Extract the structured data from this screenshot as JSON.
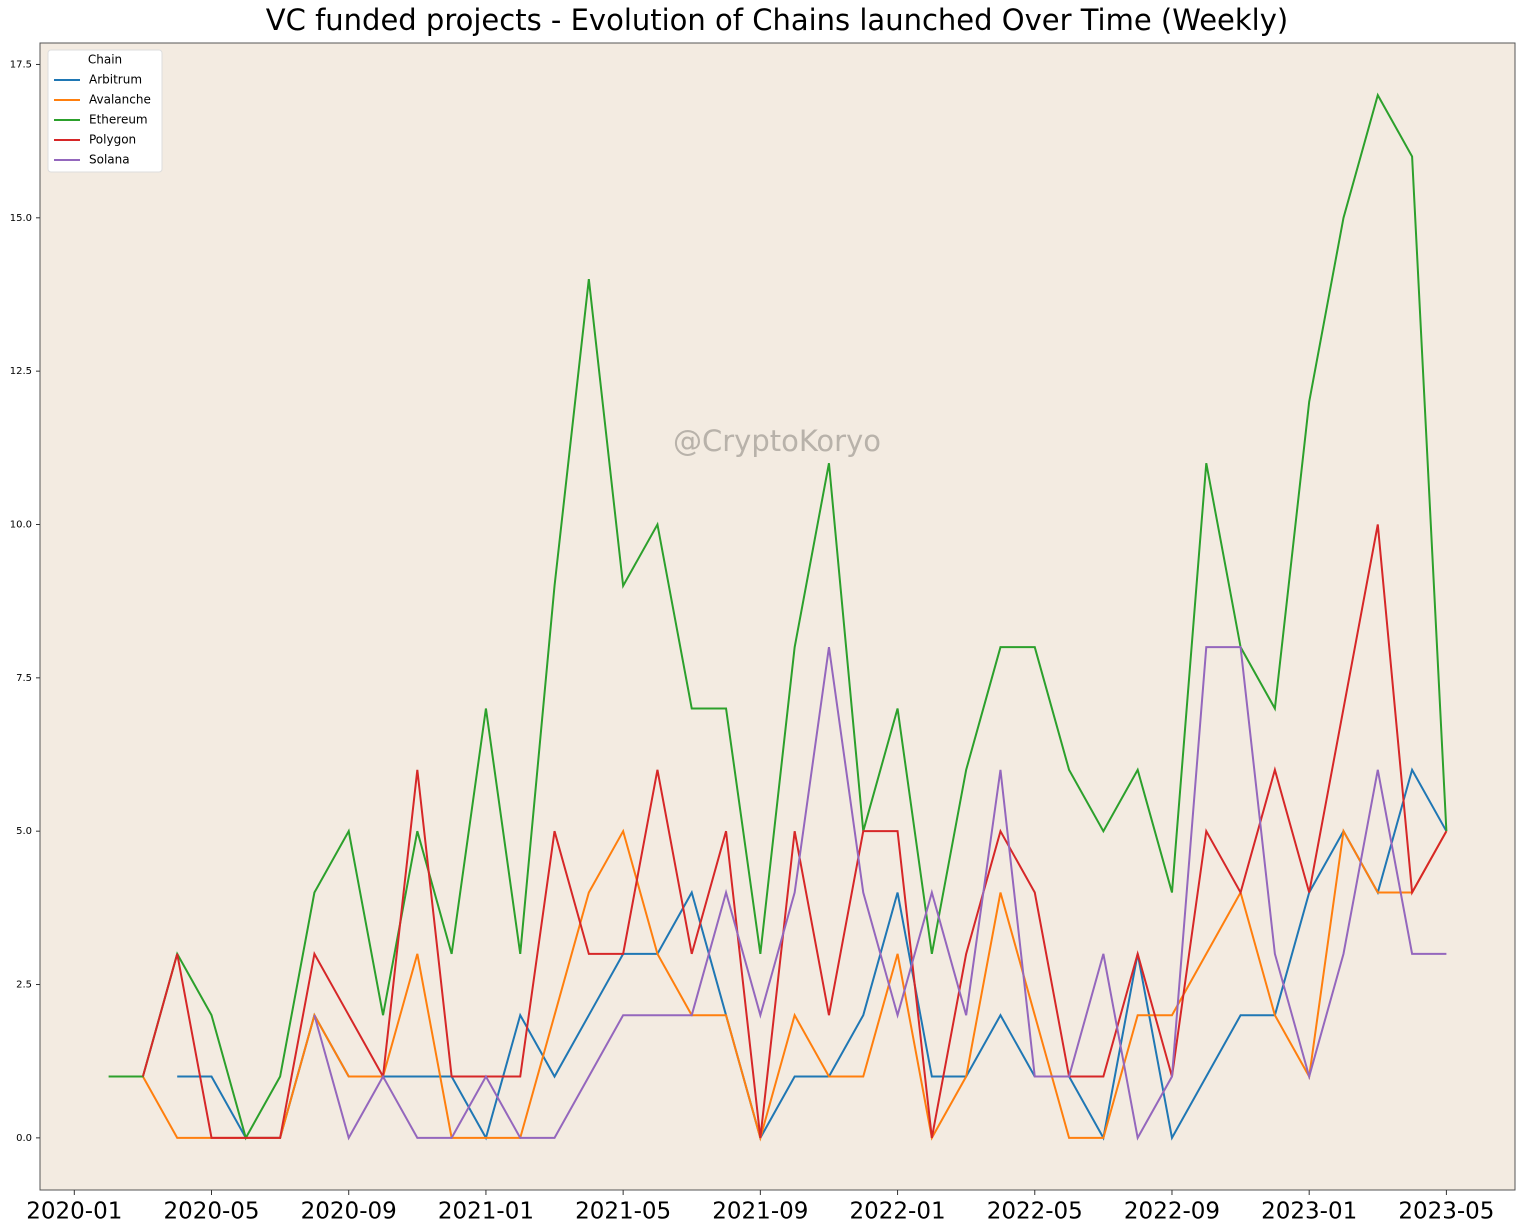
{
  "chart_data": {
    "type": "line",
    "title": "VC funded projects - Evolution of Chains launched Over Time (Weekly)",
    "annotation": "@CryptoKoryo",
    "legend_title": "Chain",
    "legend": "upper left",
    "x": [
      "2020-02",
      "2020-03",
      "2020-04",
      "2020-05",
      "2020-06",
      "2020-07",
      "2020-08",
      "2020-09",
      "2020-10",
      "2020-11",
      "2020-12",
      "2021-01",
      "2021-02",
      "2021-03",
      "2021-04",
      "2021-05",
      "2021-06",
      "2021-07",
      "2021-08",
      "2021-09",
      "2021-10",
      "2021-11",
      "2021-12",
      "2022-01",
      "2022-02",
      "2022-03",
      "2022-04",
      "2022-05",
      "2022-06",
      "2022-07",
      "2022-08",
      "2022-09",
      "2022-10",
      "2022-11",
      "2022-12",
      "2023-01",
      "2023-02",
      "2023-03",
      "2023-04",
      "2023-05"
    ],
    "series": [
      {
        "name": "Arbitrum",
        "color": "#1f77b4",
        "values": [
          null,
          null,
          1,
          1,
          0,
          0,
          2,
          1,
          1,
          1,
          1,
          0,
          2,
          1,
          2,
          3,
          3,
          4,
          2,
          0,
          1,
          1,
          2,
          4,
          1,
          1,
          2,
          1,
          1,
          0,
          3,
          0,
          1,
          2,
          2,
          4,
          5,
          4,
          6,
          5
        ]
      },
      {
        "name": "Avalanche",
        "color": "#ff7f0e",
        "values": [
          null,
          1,
          0,
          0,
          0,
          0,
          2,
          1,
          1,
          3,
          0,
          0,
          0,
          2,
          4,
          5,
          3,
          2,
          2,
          0,
          2,
          1,
          1,
          3,
          0,
          1,
          4,
          2,
          0,
          0,
          2,
          2,
          3,
          4,
          2,
          1,
          5,
          4,
          4,
          5
        ]
      },
      {
        "name": "Ethereum",
        "color": "#2ca02c",
        "values": [
          1,
          1,
          3,
          2,
          0,
          1,
          4,
          5,
          2,
          5,
          3,
          7,
          3,
          9,
          14,
          9,
          10,
          7,
          7,
          3,
          8,
          11,
          5,
          7,
          3,
          6,
          8,
          8,
          6,
          5,
          6,
          4,
          11,
          8,
          7,
          12,
          15,
          17,
          16,
          5
        ]
      },
      {
        "name": "Polygon",
        "color": "#d62728",
        "values": [
          null,
          1,
          3,
          0,
          0,
          0,
          3,
          2,
          1,
          6,
          1,
          1,
          1,
          5,
          3,
          3,
          6,
          3,
          5,
          0,
          5,
          2,
          5,
          5,
          0,
          3,
          5,
          4,
          1,
          1,
          3,
          1,
          5,
          4,
          6,
          4,
          7,
          10,
          4,
          5
        ]
      },
      {
        "name": "Solana",
        "color": "#9467bd",
        "values": [
          null,
          null,
          null,
          null,
          null,
          null,
          2,
          0,
          1,
          0,
          0,
          1,
          0,
          0,
          1,
          2,
          2,
          2,
          4,
          2,
          4,
          8,
          4,
          2,
          4,
          2,
          6,
          1,
          1,
          3,
          0,
          1,
          8,
          8,
          3,
          1,
          3,
          6,
          3,
          3
        ]
      }
    ],
    "xlim": [
      "2019-12",
      "2023-07"
    ],
    "xticks": [
      "2020-01",
      "2020-05",
      "2020-09",
      "2021-01",
      "2021-05",
      "2021-09",
      "2022-01",
      "2022-05",
      "2022-09",
      "2023-01",
      "2023-05"
    ],
    "ylim": [
      -0.85,
      17.85
    ],
    "yticks": [
      {
        "value": 0,
        "label": "0.0"
      },
      {
        "value": 2.5,
        "label": "2.5"
      },
      {
        "value": 5,
        "label": "5.0"
      },
      {
        "value": 7.5,
        "label": "7.5"
      },
      {
        "value": 10,
        "label": "10.0"
      },
      {
        "value": 12.5,
        "label": "12.5"
      },
      {
        "value": 15,
        "label": "15.0"
      },
      {
        "value": 17.5,
        "label": "17.5"
      }
    ],
    "plot_background": "#f3ebe1"
  }
}
